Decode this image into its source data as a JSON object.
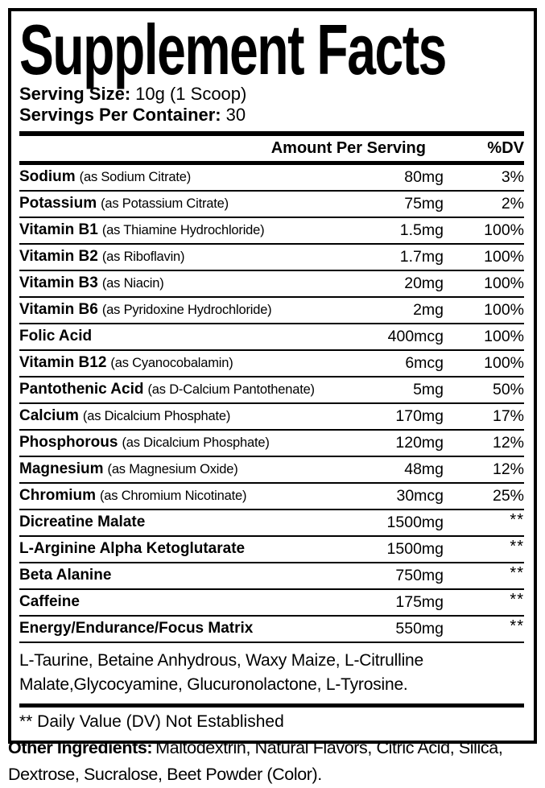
{
  "colors": {
    "text": "#000000",
    "background": "#ffffff",
    "rule": "#000000"
  },
  "header": {
    "title": "Supplement Facts",
    "serving_size_label": "Serving Size:",
    "serving_size_value": "10g (1 Scoop)",
    "servings_per_container_label": "Servings Per Container:",
    "servings_per_container_value": "30"
  },
  "table": {
    "amount_header": "Amount Per Serving",
    "dv_header": "%DV",
    "rows": [
      {
        "name": "Sodium",
        "detail": "(as Sodium Citrate)",
        "amount": "80mg",
        "dv": "3%"
      },
      {
        "name": "Potassium",
        "detail": "(as Potassium Citrate)",
        "amount": "75mg",
        "dv": "2%"
      },
      {
        "name": "Vitamin B1",
        "detail": "(as Thiamine Hydrochloride)",
        "amount": "1.5mg",
        "dv": "100%"
      },
      {
        "name": "Vitamin B2",
        "detail": "(as Riboflavin)",
        "amount": "1.7mg",
        "dv": "100%"
      },
      {
        "name": "Vitamin B3",
        "detail": "(as Niacin)",
        "amount": "20mg",
        "dv": "100%"
      },
      {
        "name": "Vitamin B6",
        "detail": "(as Pyridoxine Hydrochloride)",
        "amount": "2mg",
        "dv": "100%"
      },
      {
        "name": "Folic Acid",
        "detail": "",
        "amount": "400mcg",
        "dv": "100%"
      },
      {
        "name": "Vitamin B12",
        "detail": "(as Cyanocobalamin)",
        "amount": "6mcg",
        "dv": "100%"
      },
      {
        "name": "Pantothenic Acid",
        "detail": "(as D-Calcium Pantothenate)",
        "amount": "5mg",
        "dv": "50%"
      },
      {
        "name": "Calcium",
        "detail": "(as Dicalcium Phosphate)",
        "amount": "170mg",
        "dv": "17%"
      },
      {
        "name": "Phosphorous",
        "detail": "(as Dicalcium Phosphate)",
        "amount": "120mg",
        "dv": "12%"
      },
      {
        "name": "Magnesium",
        "detail": "(as Magnesium Oxide)",
        "amount": "48mg",
        "dv": "12%"
      },
      {
        "name": "Chromium",
        "detail": "(as Chromium Nicotinate)",
        "amount": "30mcg",
        "dv": "25%"
      },
      {
        "name": "Dicreatine Malate",
        "detail": "",
        "amount": "1500mg",
        "dv": "**"
      },
      {
        "name": "L-Arginine Alpha Ketoglutarate",
        "detail": "",
        "amount": "1500mg",
        "dv": "**"
      },
      {
        "name": "Beta Alanine",
        "detail": "",
        "amount": "750mg",
        "dv": "**"
      },
      {
        "name": "Caffeine",
        "detail": "",
        "amount": "175mg",
        "dv": "**"
      },
      {
        "name": "Energy/Endurance/Focus Matrix",
        "detail": "",
        "amount": "550mg",
        "dv": "**"
      }
    ],
    "blend_description": "L-Taurine, Betaine Anhydrous, Waxy Maize,  L-Citrulline Malate,Glycocyamine, Glucuronolactone, L-Tyrosine.",
    "footnote": "** Daily Value (DV) Not Established"
  },
  "other_ingredients": {
    "label": "Other Ingredients:",
    "value": "Maltodextrin, Natural Flavors, Citric Acid, Silica, Dextrose, Sucralose, Beet Powder (Color)."
  }
}
